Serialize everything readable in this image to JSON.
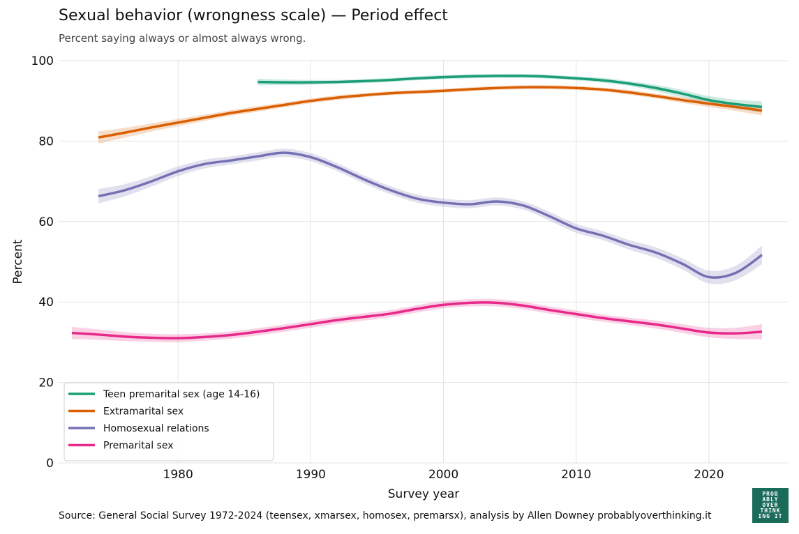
{
  "header": {
    "title": "Sexual behavior (wrongness scale) — Period effect",
    "subtitle": "Percent saying always or almost always wrong."
  },
  "footer": {
    "source": "Source: General Social Survey 1972-2024 (teensex, xmarsex, homosex, premarsx), analysis by Allen Downey probablyoverthinking.it"
  },
  "logo": {
    "lines": [
      "PROB",
      "ABLY",
      "OVER",
      "THINK",
      "ING IT"
    ],
    "color": "#1b6b5a"
  },
  "chart_data": {
    "type": "line",
    "xlabel": "Survey year",
    "ylabel": "Percent",
    "xlim": [
      1971,
      2026
    ],
    "ylim": [
      0,
      100
    ],
    "xticks": [
      1980,
      1990,
      2000,
      2010,
      2020
    ],
    "yticks": [
      0,
      20,
      40,
      60,
      80,
      100
    ],
    "grid": true,
    "legend_position": "bottom-left",
    "series": [
      {
        "name": "Teen premarital sex (age 14-16)",
        "color": "#1b9e77",
        "x": [
          1986,
          1988,
          1990,
          1992,
          1994,
          1996,
          1998,
          2000,
          2002,
          2004,
          2006,
          2008,
          2010,
          2012,
          2014,
          2016,
          2018,
          2020,
          2022,
          2024
        ],
        "y": [
          94.7,
          94.6,
          94.6,
          94.7,
          94.9,
          95.2,
          95.6,
          95.9,
          96.1,
          96.2,
          96.2,
          96.0,
          95.6,
          95.1,
          94.3,
          93.2,
          91.8,
          90.2,
          89.2,
          88.5
        ],
        "ci": [
          0.8,
          0.7,
          0.6,
          0.5,
          0.5,
          0.5,
          0.5,
          0.5,
          0.5,
          0.5,
          0.5,
          0.5,
          0.5,
          0.6,
          0.6,
          0.8,
          0.9,
          1.0,
          1.1,
          1.4
        ]
      },
      {
        "name": "Extramarital sex",
        "color": "#d95f02",
        "x": [
          1974,
          1976,
          1978,
          1980,
          1982,
          1984,
          1986,
          1988,
          1990,
          1992,
          1994,
          1996,
          1998,
          2000,
          2002,
          2004,
          2006,
          2008,
          2010,
          2012,
          2014,
          2016,
          2018,
          2020,
          2022,
          2024
        ],
        "y": [
          80.9,
          82.1,
          83.4,
          84.6,
          85.8,
          87.0,
          88.0,
          89.0,
          90.0,
          90.8,
          91.4,
          91.9,
          92.2,
          92.5,
          92.9,
          93.2,
          93.4,
          93.4,
          93.2,
          92.8,
          92.1,
          91.2,
          90.2,
          89.3,
          88.5,
          87.6
        ],
        "ci": [
          1.5,
          1.2,
          1.0,
          0.9,
          0.8,
          0.7,
          0.7,
          0.6,
          0.6,
          0.6,
          0.5,
          0.5,
          0.5,
          0.5,
          0.5,
          0.5,
          0.5,
          0.5,
          0.5,
          0.5,
          0.6,
          0.6,
          0.7,
          0.8,
          1.0,
          1.2
        ]
      },
      {
        "name": "Homosexual relations",
        "color": "#7570b3",
        "x": [
          1974,
          1976,
          1978,
          1980,
          1982,
          1984,
          1986,
          1988,
          1990,
          1992,
          1994,
          1996,
          1998,
          2000,
          2002,
          2004,
          2006,
          2008,
          2010,
          2012,
          2014,
          2016,
          2018,
          2020,
          2022,
          2024
        ],
        "y": [
          66.3,
          67.8,
          70.0,
          72.5,
          74.3,
          75.2,
          76.2,
          77.1,
          76.0,
          73.5,
          70.5,
          67.8,
          65.7,
          64.7,
          64.3,
          65.0,
          64.0,
          61.3,
          58.3,
          56.5,
          54.2,
          52.3,
          49.5,
          46.2,
          47.2,
          51.7
        ],
        "ci": [
          1.8,
          1.5,
          1.3,
          1.2,
          1.1,
          1.0,
          1.0,
          1.0,
          1.0,
          1.0,
          1.0,
          1.0,
          1.0,
          1.0,
          1.0,
          1.0,
          1.0,
          1.1,
          1.1,
          1.1,
          1.2,
          1.3,
          1.4,
          1.6,
          1.8,
          2.3
        ]
      },
      {
        "name": "Premarital sex",
        "color": "#e7298a",
        "x": [
          1972,
          1974,
          1976,
          1978,
          1980,
          1982,
          1984,
          1986,
          1988,
          1990,
          1992,
          1994,
          1996,
          1998,
          2000,
          2002,
          2004,
          2006,
          2008,
          2010,
          2012,
          2014,
          2016,
          2018,
          2020,
          2022,
          2024
        ],
        "y": [
          32.3,
          31.9,
          31.4,
          31.1,
          31.0,
          31.3,
          31.8,
          32.6,
          33.5,
          34.5,
          35.5,
          36.3,
          37.1,
          38.3,
          39.3,
          39.8,
          39.8,
          39.1,
          38.0,
          37.0,
          36.0,
          35.2,
          34.4,
          33.4,
          32.4,
          32.2,
          32.6
        ],
        "ci": [
          1.5,
          1.3,
          1.1,
          1.0,
          1.0,
          0.9,
          0.9,
          0.9,
          0.9,
          0.9,
          0.9,
          0.9,
          0.9,
          0.9,
          0.9,
          0.9,
          0.9,
          0.9,
          0.9,
          0.9,
          0.9,
          0.9,
          1.0,
          1.1,
          1.2,
          1.4,
          1.9
        ]
      }
    ]
  }
}
